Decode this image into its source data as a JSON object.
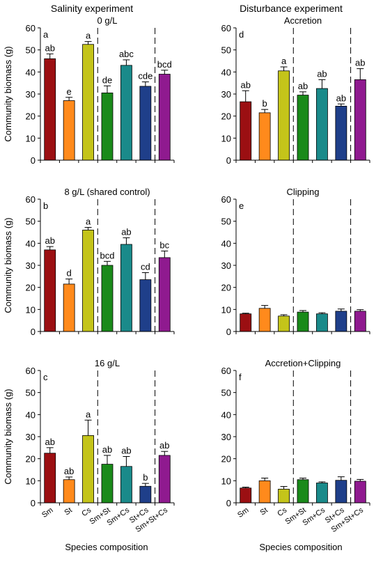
{
  "column_titles": {
    "left": "Salinity experiment",
    "right": "Disturbance experiment"
  },
  "shared": {
    "ylabel": "Community biomass (g)",
    "xlabel": "Species composition",
    "categories": [
      "Sm",
      "St",
      "Cs",
      "Sm+St",
      "Sm+Cs",
      "St+Cs",
      "Sm+St+Cs"
    ],
    "bar_colors": [
      "#9b0f12",
      "#ff8a1c",
      "#c4c41a",
      "#1a8a1a",
      "#1a8a8a",
      "#1f3f8a",
      "#8f1a8f"
    ],
    "yticks": [
      0,
      10,
      20,
      30,
      40,
      50,
      60
    ],
    "ylim": [
      0,
      60
    ]
  },
  "chart_data": [
    {
      "type": "bar",
      "letter": "a",
      "title": "0 g/L",
      "categories": [
        "Sm",
        "St",
        "Cs",
        "Sm+St",
        "Sm+Cs",
        "St+Cs",
        "Sm+St+Cs"
      ],
      "values": [
        46,
        27,
        52.5,
        30.5,
        43,
        33.5,
        39
      ],
      "errors": [
        2.2,
        1.5,
        1.3,
        3.2,
        2.5,
        2.0,
        1.8
      ],
      "significance": [
        "ab",
        "e",
        "a",
        "de",
        "abc",
        "cde",
        "bcd"
      ],
      "ylim": [
        0,
        60
      ]
    },
    {
      "type": "bar",
      "letter": "b",
      "title": "8 g/L (shared control)",
      "categories": [
        "Sm",
        "St",
        "Cs",
        "Sm+St",
        "Sm+Cs",
        "St+Cs",
        "Sm+St+Cs"
      ],
      "values": [
        37,
        21.5,
        46,
        30,
        39.5,
        23.5,
        33.5
      ],
      "errors": [
        1.5,
        2.3,
        1.2,
        1.8,
        3.0,
        3.2,
        3.0
      ],
      "significance": [
        "ab",
        "d",
        "a",
        "bcd",
        "ab",
        "cd",
        "bc"
      ],
      "ylim": [
        0,
        60
      ]
    },
    {
      "type": "bar",
      "letter": "c",
      "title": "16 g/L",
      "categories": [
        "Sm",
        "St",
        "Cs",
        "Sm+St",
        "Sm+Cs",
        "St+Cs",
        "Sm+St+Cs"
      ],
      "values": [
        22.5,
        10.5,
        30.5,
        17.5,
        16.5,
        7.5,
        21.5
      ],
      "errors": [
        2.5,
        1.2,
        7.0,
        4.0,
        4.5,
        1.3,
        1.8
      ],
      "significance": [
        "ab",
        "ab",
        "a",
        "ab",
        "ab",
        "b",
        "ab"
      ],
      "ylim": [
        0,
        60
      ]
    },
    {
      "type": "bar",
      "letter": "d",
      "title": "Accretion",
      "categories": [
        "Sm",
        "St",
        "Cs",
        "Sm+St",
        "Sm+Cs",
        "St+Cs",
        "Sm+St+Cs"
      ],
      "values": [
        26.5,
        21.5,
        40.5,
        29.5,
        32.5,
        24.5,
        36.5
      ],
      "errors": [
        5.0,
        1.5,
        1.8,
        1.5,
        4.0,
        1.0,
        5.0
      ],
      "significance": [
        "ab",
        "b",
        "a",
        "ab",
        "ab",
        "ab",
        "ab"
      ],
      "ylim": [
        0,
        60
      ]
    },
    {
      "type": "bar",
      "letter": "e",
      "title": "Clipping",
      "categories": [
        "Sm",
        "St",
        "Cs",
        "Sm+St",
        "Sm+Cs",
        "St+Cs",
        "Sm+St+Cs"
      ],
      "values": [
        8,
        10.5,
        7,
        8.8,
        8,
        9.2,
        9.2
      ],
      "errors": [
        0.3,
        1.3,
        0.6,
        0.7,
        0.5,
        1.0,
        0.7
      ],
      "significance": [
        "",
        "",
        "",
        "",
        "",
        "",
        ""
      ],
      "ylim": [
        0,
        60
      ]
    },
    {
      "type": "bar",
      "letter": "f",
      "title": "Accretion+Clipping",
      "categories": [
        "Sm",
        "St",
        "Cs",
        "Sm+St",
        "Sm+Cs",
        "St+Cs",
        "Sm+St+Cs"
      ],
      "values": [
        6.7,
        10,
        6.2,
        10.5,
        9,
        10.2,
        9.8
      ],
      "errors": [
        0.4,
        1.2,
        1.2,
        0.7,
        0.5,
        1.6,
        0.8
      ],
      "significance": [
        "",
        "",
        "",
        "",
        "",
        "",
        ""
      ],
      "ylim": [
        0,
        60
      ]
    }
  ]
}
